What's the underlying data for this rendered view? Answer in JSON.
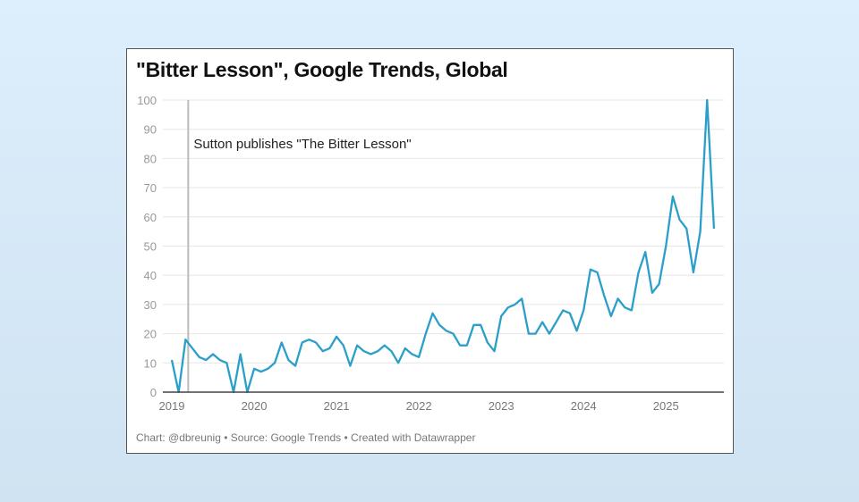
{
  "chart_data": {
    "type": "line",
    "title": "\"Bitter Lesson\", Google Trends, Global",
    "xlabel": "",
    "ylabel": "",
    "ylim": [
      0,
      100
    ],
    "yticks": [
      0,
      10,
      20,
      30,
      40,
      50,
      60,
      70,
      80,
      90,
      100
    ],
    "xticks": [
      "2019",
      "2020",
      "2021",
      "2022",
      "2023",
      "2024",
      "2025"
    ],
    "x_start": "2019-01",
    "x_frequency": "monthly",
    "grid": true,
    "line_color": "#2b9fc9",
    "values": [
      11,
      0,
      18,
      15,
      12,
      11,
      13,
      11,
      10,
      0,
      13,
      0,
      8,
      7,
      8,
      10,
      17,
      11,
      9,
      17,
      18,
      17,
      14,
      15,
      19,
      16,
      9,
      16,
      14,
      13,
      14,
      16,
      14,
      10,
      15,
      13,
      12,
      20,
      27,
      23,
      21,
      20,
      16,
      16,
      23,
      23,
      17,
      14,
      26,
      29,
      30,
      32,
      20,
      20,
      24,
      20,
      24,
      28,
      27,
      21,
      28,
      42,
      41,
      33,
      26,
      32,
      29,
      28,
      41,
      48,
      34,
      37,
      50,
      67,
      59,
      56,
      41,
      55,
      100,
      56
    ],
    "annotation": {
      "text": "Sutton publishes \"The Bitter Lesson\"",
      "date": "2019-03"
    }
  },
  "footer": "Chart: @dbreunig • Source: Google Trends • Created with Datawrapper"
}
